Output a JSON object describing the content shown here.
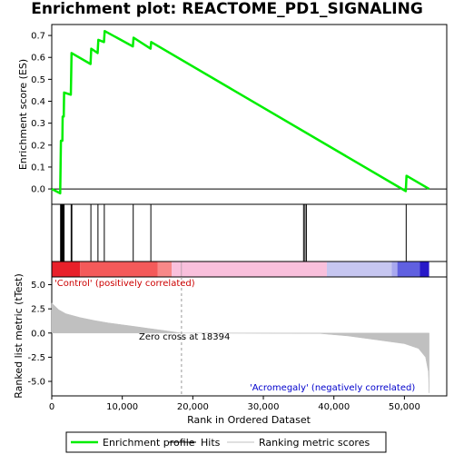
{
  "chart_data": {
    "type": "line",
    "title": "Enrichment plot: REACTOME_PD1_SIGNALING",
    "xlabel": "Rank in Ordered Dataset",
    "es_ylabel": "Enrichment score (ES)",
    "metric_ylabel": "Ranked list metric (tTest)",
    "xlim": [
      0,
      56000
    ],
    "es_ylim": [
      -0.07,
      0.75
    ],
    "metric_ylim": [
      -6.5,
      5.8
    ],
    "x_ticks": [
      0,
      10000,
      20000,
      30000,
      40000,
      50000
    ],
    "x_tick_labels": [
      "0",
      "10,000",
      "20,000",
      "30,000",
      "40,000",
      "50,000"
    ],
    "es_ticks": [
      0.0,
      0.1,
      0.2,
      0.3,
      0.4,
      0.5,
      0.6,
      0.7
    ],
    "es_tick_labels": [
      "0.0",
      "0.1",
      "0.2",
      "0.3",
      "0.4",
      "0.5",
      "0.6",
      "0.7"
    ],
    "metric_ticks": [
      5.0,
      2.5,
      0.0,
      -2.5,
      -5.0
    ],
    "metric_tick_labels": [
      "5.0",
      "2.5",
      "0.0",
      "-2.5",
      "-5.0"
    ],
    "enrichment_profile": {
      "name": "Enrichment profile",
      "color": "#00ee00",
      "points": [
        [
          0,
          0.0
        ],
        [
          1200,
          -0.02
        ],
        [
          1250,
          0.1
        ],
        [
          1300,
          0.22
        ],
        [
          1500,
          0.22
        ],
        [
          1550,
          0.33
        ],
        [
          1700,
          0.33
        ],
        [
          1750,
          0.44
        ],
        [
          2700,
          0.43
        ],
        [
          2750,
          0.52
        ],
        [
          2800,
          0.62
        ],
        [
          5500,
          0.57
        ],
        [
          5600,
          0.64
        ],
        [
          6500,
          0.62
        ],
        [
          6600,
          0.68
        ],
        [
          7400,
          0.67
        ],
        [
          7500,
          0.72
        ],
        [
          11500,
          0.65
        ],
        [
          11600,
          0.69
        ],
        [
          14000,
          0.64
        ],
        [
          14100,
          0.67
        ],
        [
          50200,
          -0.01
        ],
        [
          50300,
          0.06
        ],
        [
          53500,
          0.0
        ]
      ]
    },
    "hits": [
      1250,
      1350,
      1450,
      1550,
      1650,
      1750,
      2750,
      2850,
      5550,
      6550,
      7450,
      11550,
      14050,
      35700,
      35900,
      36100,
      50250
    ],
    "ranked_metric": {
      "name": "Ranking metric scores",
      "color": "#c0c0c0",
      "points": [
        [
          0,
          3.1
        ],
        [
          1000,
          2.4
        ],
        [
          2000,
          2.0
        ],
        [
          4000,
          1.6
        ],
        [
          6000,
          1.3
        ],
        [
          8000,
          1.05
        ],
        [
          10000,
          0.85
        ],
        [
          12000,
          0.65
        ],
        [
          14000,
          0.45
        ],
        [
          16000,
          0.25
        ],
        [
          18394,
          0.0
        ],
        [
          38000,
          -0.05
        ],
        [
          42000,
          -0.3
        ],
        [
          46000,
          -0.7
        ],
        [
          50000,
          -1.1
        ],
        [
          52000,
          -1.6
        ],
        [
          53000,
          -2.5
        ],
        [
          53400,
          -4.0
        ],
        [
          53500,
          -6.2
        ]
      ]
    },
    "zero_cross": 18394,
    "zero_cross_label": "Zero cross at 18394",
    "positive_label": "'Control' (positively correlated)",
    "negative_label": "'Acromegaly' (negatively correlated)",
    "heat_bar": [
      {
        "from": 0,
        "to": 4000,
        "color": "#e8202a"
      },
      {
        "from": 4000,
        "to": 15000,
        "color": "#f45a5a"
      },
      {
        "from": 15000,
        "to": 17000,
        "color": "#f88888"
      },
      {
        "from": 17000,
        "to": 39000,
        "color": "#f9c0dc"
      },
      {
        "from": 39000,
        "to": 48200,
        "color": "#c6c6f0"
      },
      {
        "from": 48200,
        "to": 49000,
        "color": "#a8a8ee"
      },
      {
        "from": 49000,
        "to": 52200,
        "color": "#6060e0"
      },
      {
        "from": 52200,
        "to": 53500,
        "color": "#2818c8"
      }
    ],
    "legend": [
      {
        "label": "Enrichment profile",
        "color": "#00ee00",
        "kind": "line"
      },
      {
        "label": "Hits",
        "color": "#000000",
        "kind": "line"
      },
      {
        "label": "Ranking metric scores",
        "color": "#c0c0c0",
        "kind": "line"
      }
    ]
  }
}
